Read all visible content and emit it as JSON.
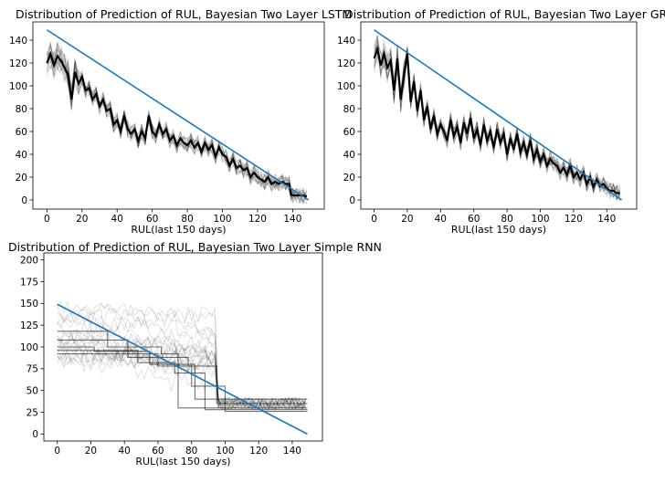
{
  "chart_data": [
    {
      "type": "line",
      "title": "Distribution of Prediction of RUL, Bayesian Two Layer LSTM",
      "xlabel": "RUL(last 150 days)",
      "ylabel": "",
      "xlim": [
        -8,
        158
      ],
      "ylim": [
        -8,
        156
      ],
      "xticks": [
        0,
        20,
        40,
        60,
        80,
        100,
        120,
        140
      ],
      "yticks": [
        0,
        20,
        40,
        60,
        80,
        100,
        120,
        140
      ],
      "grid": false,
      "series": [
        {
          "role": "true_rul",
          "color": "#1f77b4",
          "x": [
            0,
            149
          ],
          "y": [
            149,
            0
          ]
        },
        {
          "role": "predicted_mean",
          "color": "#000000",
          "x": [
            0,
            2,
            4,
            6,
            8,
            10,
            12,
            14,
            16,
            18,
            20,
            22,
            24,
            26,
            28,
            30,
            32,
            34,
            36,
            38,
            40,
            42,
            44,
            46,
            48,
            50,
            52,
            54,
            56,
            58,
            60,
            62,
            64,
            66,
            68,
            70,
            72,
            74,
            76,
            78,
            80,
            82,
            84,
            86,
            88,
            90,
            92,
            94,
            96,
            98,
            100,
            102,
            104,
            106,
            108,
            110,
            112,
            114,
            116,
            118,
            120,
            122,
            124,
            126,
            128,
            130,
            132,
            134,
            136,
            138,
            139,
            140,
            142,
            144,
            146,
            148
          ],
          "y": [
            120,
            128,
            118,
            126,
            122,
            116,
            110,
            88,
            112,
            102,
            108,
            96,
            98,
            88,
            93,
            82,
            88,
            78,
            80,
            66,
            70,
            60,
            74,
            62,
            58,
            62,
            52,
            60,
            54,
            74,
            60,
            56,
            66,
            58,
            62,
            52,
            56,
            48,
            54,
            50,
            48,
            52,
            46,
            50,
            42,
            50,
            44,
            48,
            38,
            46,
            40,
            38,
            30,
            36,
            28,
            30,
            26,
            28,
            20,
            24,
            20,
            18,
            16,
            20,
            14,
            16,
            14,
            16,
            14,
            14,
            5,
            4,
            4,
            4,
            4,
            3
          ]
        }
      ],
      "band": {
        "description": "many Monte Carlo sample lines around the mean",
        "color": "#000000"
      }
    },
    {
      "type": "line",
      "title": "Distribution of Prediction of RUL, Bayesian Two Layer GRU",
      "xlabel": "RUL(last 150 days)",
      "ylabel": "",
      "xlim": [
        -8,
        158
      ],
      "ylim": [
        -8,
        156
      ],
      "xticks": [
        0,
        20,
        40,
        60,
        80,
        100,
        120,
        140
      ],
      "yticks": [
        0,
        20,
        40,
        60,
        80,
        100,
        120,
        140
      ],
      "grid": false,
      "series": [
        {
          "role": "true_rul",
          "color": "#1f77b4",
          "x": [
            0,
            149
          ],
          "y": [
            149,
            0
          ]
        },
        {
          "role": "predicted_mean",
          "color": "#000000",
          "x": [
            0,
            2,
            4,
            6,
            8,
            10,
            12,
            14,
            16,
            18,
            20,
            22,
            24,
            26,
            28,
            30,
            32,
            34,
            36,
            38,
            40,
            42,
            44,
            46,
            48,
            50,
            52,
            54,
            56,
            58,
            60,
            62,
            64,
            66,
            68,
            70,
            72,
            74,
            76,
            78,
            80,
            82,
            84,
            86,
            88,
            90,
            92,
            94,
            96,
            98,
            100,
            102,
            104,
            106,
            108,
            110,
            112,
            114,
            116,
            118,
            120,
            122,
            124,
            126,
            128,
            130,
            132,
            134,
            136,
            138,
            140,
            142,
            144,
            146,
            148
          ],
          "y": [
            124,
            132,
            118,
            128,
            116,
            122,
            96,
            124,
            88,
            110,
            128,
            86,
            104,
            78,
            96,
            70,
            82,
            62,
            74,
            58,
            66,
            60,
            52,
            70,
            56,
            64,
            50,
            68,
            58,
            72,
            54,
            62,
            48,
            66,
            52,
            60,
            46,
            62,
            50,
            58,
            40,
            54,
            44,
            58,
            42,
            50,
            40,
            52,
            36,
            44,
            34,
            40,
            30,
            36,
            32,
            30,
            24,
            28,
            22,
            30,
            20,
            24,
            18,
            24,
            14,
            20,
            12,
            18,
            12,
            14,
            10,
            8,
            8,
            6,
            6
          ]
        }
      ],
      "band": {
        "description": "many Monte Carlo sample lines around the mean",
        "color": "#000000"
      }
    },
    {
      "type": "line",
      "title": "Distribution of Prediction of RUL, Bayesian Two Layer Simple RNN",
      "xlabel": "RUL(last 150 days)",
      "ylabel": "",
      "xlim": [
        -8,
        158
      ],
      "ylim": [
        -8,
        208
      ],
      "xticks": [
        0,
        20,
        40,
        60,
        80,
        100,
        120,
        140
      ],
      "yticks": [
        0,
        25,
        50,
        75,
        100,
        125,
        150,
        175,
        200
      ],
      "grid": false,
      "series": [
        {
          "role": "true_rul",
          "color": "#1f77b4",
          "x": [
            0,
            149
          ],
          "y": [
            149,
            0
          ]
        },
        {
          "role": "sample_1",
          "color": "#000000",
          "x": [
            0,
            30,
            30,
            62,
            62,
            72,
            72,
            149
          ],
          "y": [
            118,
            118,
            100,
            100,
            92,
            92,
            30,
            30
          ]
        },
        {
          "role": "sample_2",
          "color": "#000000",
          "x": [
            0,
            42,
            42,
            78,
            78,
            95,
            95,
            149
          ],
          "y": [
            108,
            108,
            88,
            88,
            78,
            78,
            35,
            35
          ]
        },
        {
          "role": "sample_3",
          "color": "#000000",
          "x": [
            0,
            22,
            22,
            55,
            55,
            82,
            82,
            149
          ],
          "y": [
            100,
            100,
            95,
            95,
            80,
            80,
            40,
            40
          ]
        },
        {
          "role": "sample_4",
          "color": "#000000",
          "x": [
            0,
            48,
            48,
            70,
            70,
            88,
            88,
            149
          ],
          "y": [
            96,
            96,
            82,
            82,
            70,
            70,
            28,
            28
          ]
        },
        {
          "role": "sample_5",
          "color": "#000000",
          "x": [
            0,
            60,
            60,
            80,
            80,
            100,
            100,
            149
          ],
          "y": [
            92,
            92,
            78,
            78,
            55,
            55,
            26,
            26
          ]
        }
      ],
      "band": {
        "description": "many noisy step-like Monte Carlo sample lines",
        "color": "#000000"
      }
    }
  ]
}
